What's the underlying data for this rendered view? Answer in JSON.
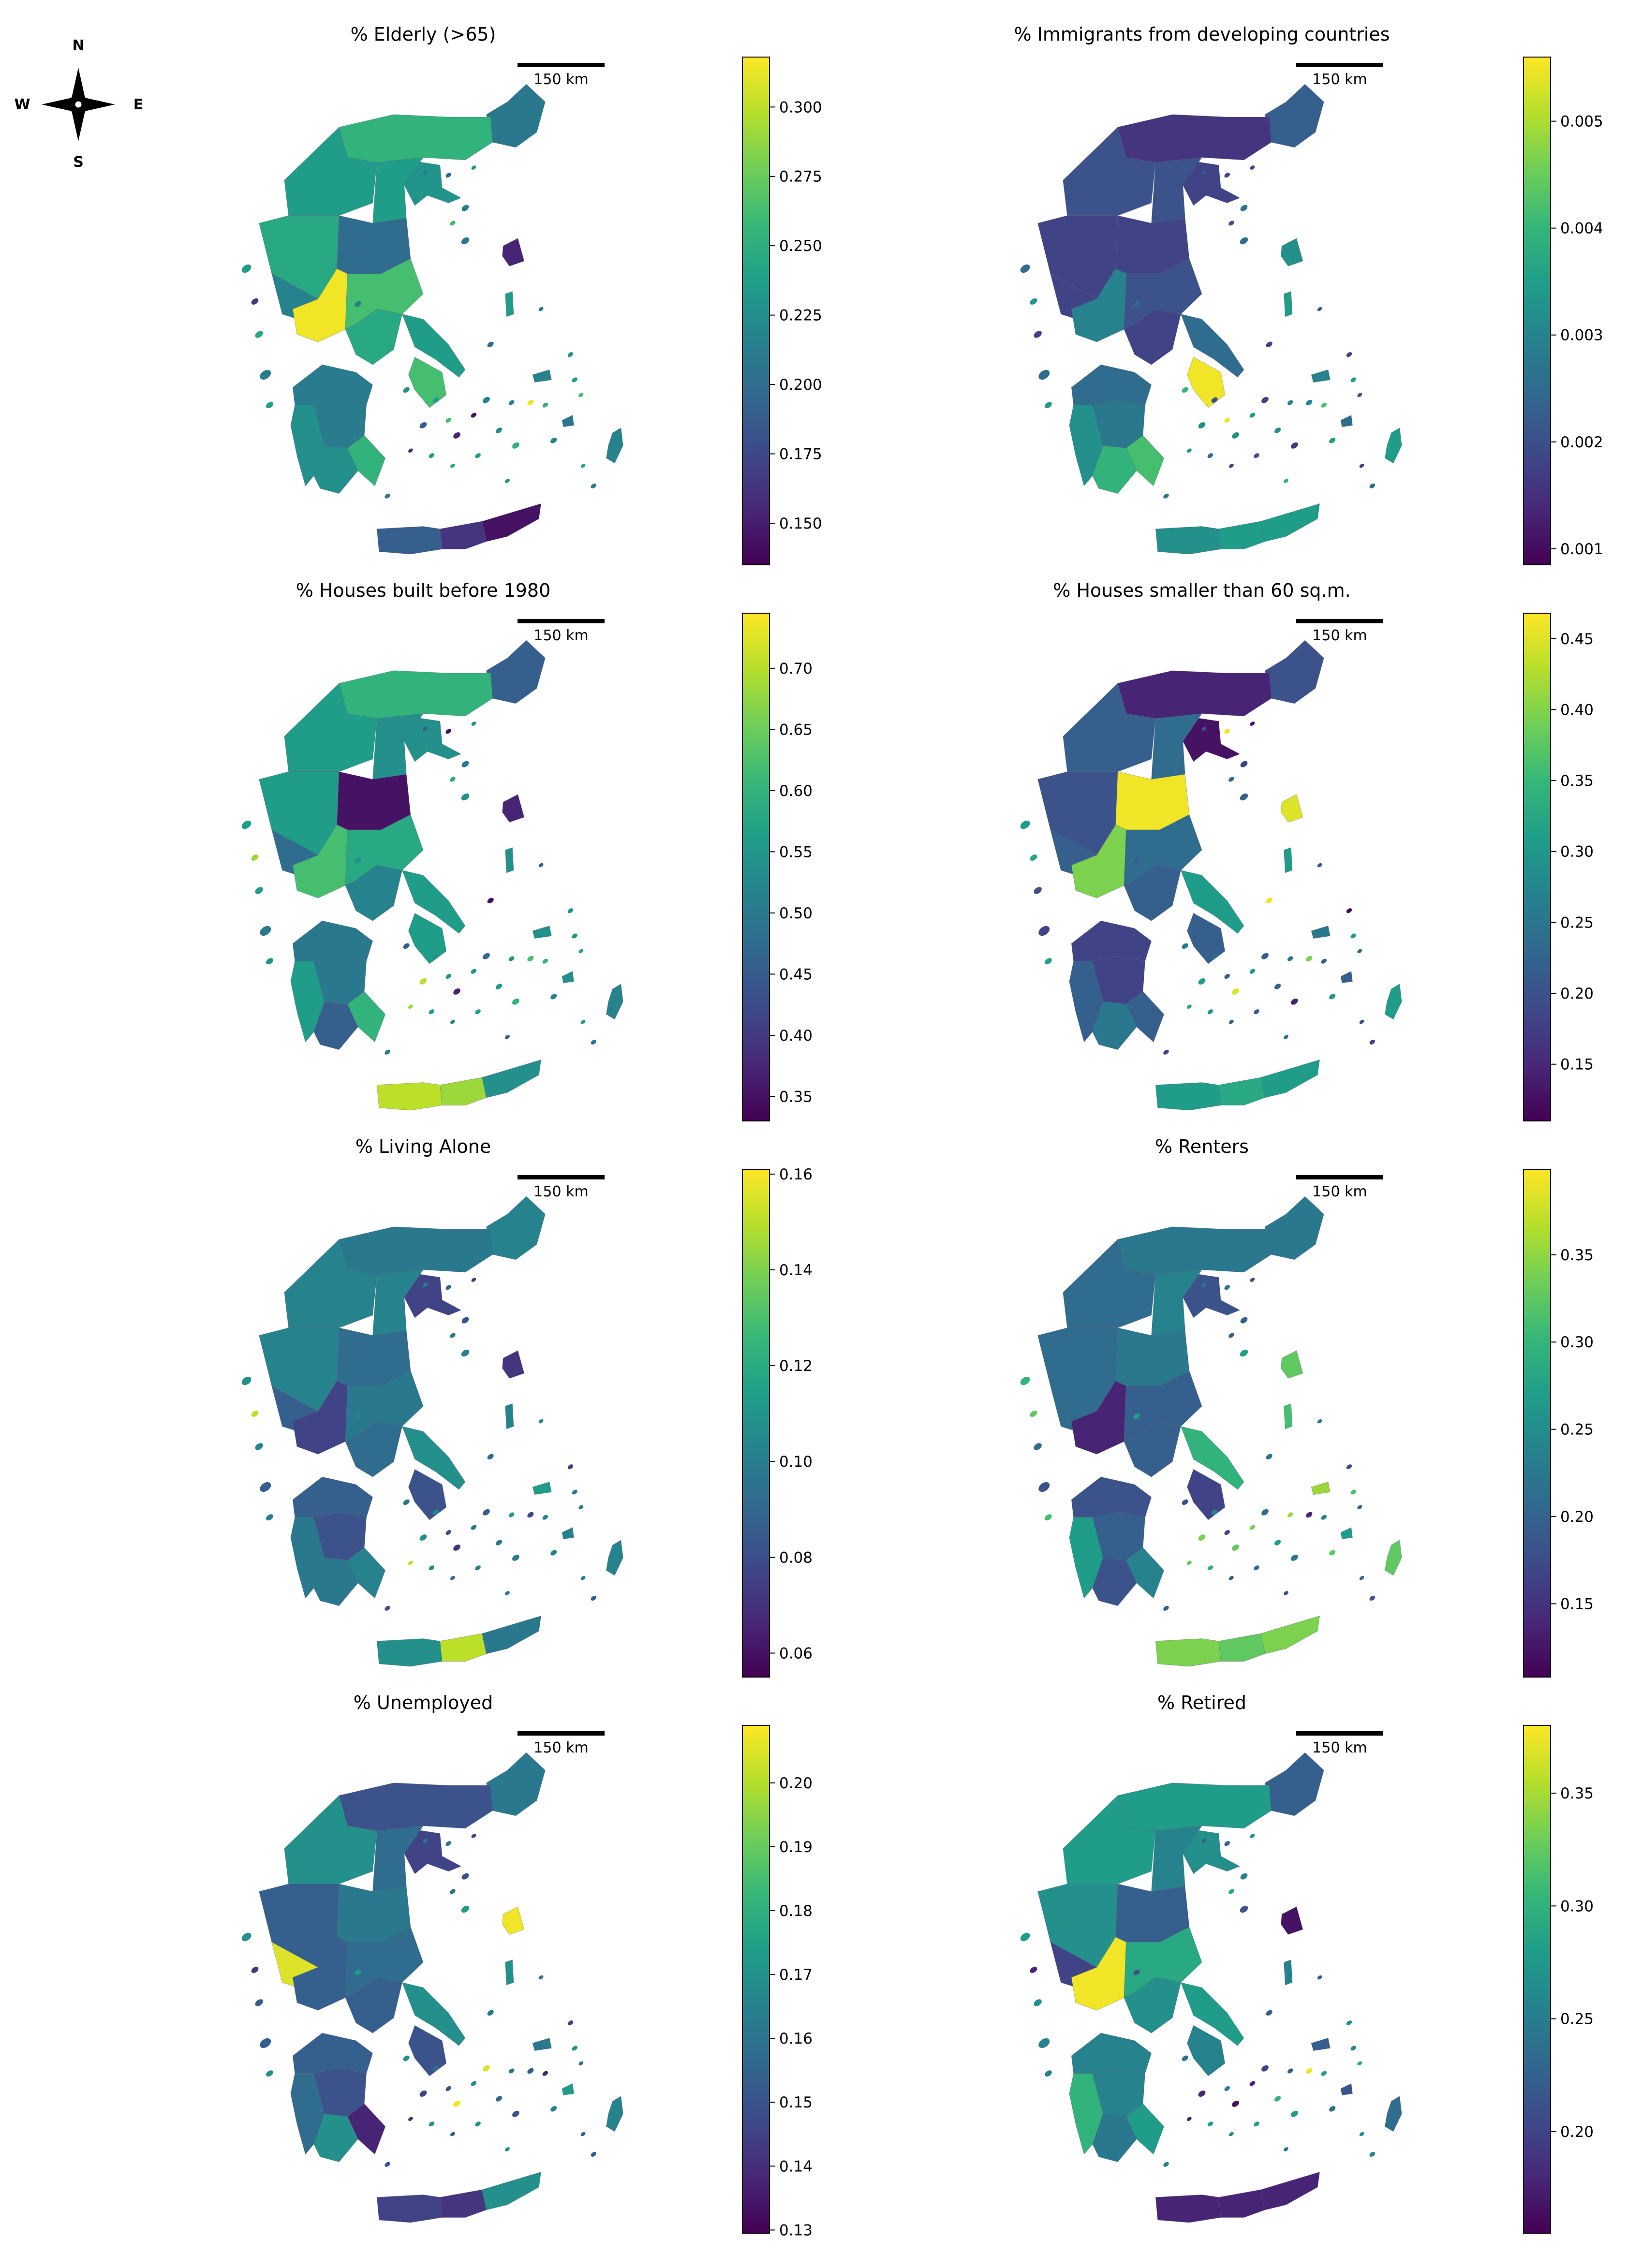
{
  "compass": {
    "n": "N",
    "s": "S",
    "e": "E",
    "w": "W"
  },
  "colors": {
    "viridis": [
      "#440154",
      "#482878",
      "#3e4a89",
      "#31688e",
      "#26828e",
      "#1f9e89",
      "#35b779",
      "#6ece58",
      "#b5de2b",
      "#fde725"
    ]
  },
  "panels": [
    {
      "id": "elderly",
      "title": "% Elderly (>65)",
      "scale_label": "150 km",
      "ticks": [
        "0.150",
        "0.175",
        "0.200",
        "0.225",
        "0.250",
        "0.275",
        "0.300"
      ],
      "color_range": [
        0.135,
        0.318
      ]
    },
    {
      "id": "immigrants",
      "title": "% Immigrants from developing countries",
      "scale_label": "150 km",
      "ticks": [
        "0.001",
        "0.002",
        "0.003",
        "0.004",
        "0.005"
      ],
      "color_range": [
        0.00085,
        0.0056
      ]
    },
    {
      "id": "houses1980",
      "title": "% Houses built before 1980",
      "scale_label": "150 km",
      "ticks": [
        "0.35",
        "0.40",
        "0.45",
        "0.50",
        "0.55",
        "0.60",
        "0.65",
        "0.70"
      ],
      "color_range": [
        0.33,
        0.745
      ]
    },
    {
      "id": "houses60",
      "title": "% Houses smaller than 60 sq.m.",
      "scale_label": "150 km",
      "ticks": [
        "0.15",
        "0.20",
        "0.25",
        "0.30",
        "0.35",
        "0.40",
        "0.45"
      ],
      "color_range": [
        0.11,
        0.468
      ]
    },
    {
      "id": "alone",
      "title": "% Living Alone",
      "scale_label": "150 km",
      "ticks": [
        "0.06",
        "0.08",
        "0.10",
        "0.12",
        "0.14",
        "0.16"
      ],
      "color_range": [
        0.055,
        0.161
      ]
    },
    {
      "id": "renters",
      "title": "% Renters",
      "scale_label": "150 km",
      "ticks": [
        "0.15",
        "0.20",
        "0.25",
        "0.30",
        "0.35"
      ],
      "color_range": [
        0.108,
        0.399
      ]
    },
    {
      "id": "unemployed",
      "title": "% Unemployed",
      "scale_label": "150 km",
      "ticks": [
        "0.13",
        "0.14",
        "0.15",
        "0.16",
        "0.17",
        "0.18",
        "0.19",
        "0.20"
      ],
      "color_range": [
        0.1295,
        0.209
      ]
    },
    {
      "id": "retired",
      "title": "% Retired",
      "scale_label": "150 km",
      "ticks": [
        "0.20",
        "0.25",
        "0.30",
        "0.35"
      ],
      "color_range": [
        0.155,
        0.38
      ]
    }
  ],
  "region_levels": {
    "elderly": [
      0.4,
      0.65,
      0.52,
      0.55,
      0.55,
      0.6,
      0.45,
      0.35,
      0.98,
      0.7,
      0.6,
      0.7,
      0.42,
      0.5,
      0.42,
      0.65,
      0.5,
      0.55,
      0.1,
      0.55,
      0.45,
      0.4,
      0.45,
      0.3,
      0.15,
      0.05
    ],
    "immigrants": [
      0.3,
      0.15,
      0.2,
      0.25,
      0.25,
      0.2,
      0.2,
      0.2,
      0.45,
      0.25,
      0.2,
      0.98,
      0.35,
      0.5,
      0.4,
      0.7,
      0.65,
      0.35,
      0.5,
      0.55,
      0.45,
      0.35,
      0.55,
      0.5,
      0.55,
      0.55
    ],
    "houses1980": [
      0.3,
      0.65,
      0.5,
      0.55,
      0.5,
      0.55,
      0.35,
      0.05,
      0.7,
      0.6,
      0.45,
      0.55,
      0.4,
      0.55,
      0.4,
      0.65,
      0.3,
      0.55,
      0.1,
      0.5,
      0.5,
      0.5,
      0.45,
      0.9,
      0.85,
      0.5
    ],
    "houses60": [
      0.25,
      0.1,
      0.05,
      0.3,
      0.35,
      0.25,
      0.3,
      0.98,
      0.8,
      0.35,
      0.3,
      0.3,
      0.2,
      0.3,
      0.2,
      0.3,
      0.4,
      0.55,
      0.95,
      0.55,
      0.4,
      0.3,
      0.55,
      0.55,
      0.6,
      0.55
    ],
    "alone": [
      0.45,
      0.4,
      0.2,
      0.45,
      0.45,
      0.45,
      0.3,
      0.35,
      0.2,
      0.4,
      0.35,
      0.25,
      0.3,
      0.4,
      0.25,
      0.45,
      0.4,
      0.5,
      0.15,
      0.45,
      0.55,
      0.45,
      0.45,
      0.5,
      0.9,
      0.4
    ],
    "renters": [
      0.4,
      0.4,
      0.25,
      0.35,
      0.45,
      0.35,
      0.35,
      0.4,
      0.1,
      0.3,
      0.3,
      0.2,
      0.25,
      0.55,
      0.3,
      0.45,
      0.25,
      0.65,
      0.75,
      0.7,
      0.85,
      0.55,
      0.75,
      0.8,
      0.75,
      0.8
    ],
    "unemployed": [
      0.4,
      0.25,
      0.2,
      0.5,
      0.35,
      0.3,
      0.95,
      0.4,
      0.3,
      0.35,
      0.3,
      0.25,
      0.3,
      0.35,
      0.25,
      0.1,
      0.5,
      0.5,
      0.98,
      0.5,
      0.4,
      0.55,
      0.45,
      0.2,
      0.15,
      0.5
    ],
    "retired": [
      0.3,
      0.55,
      0.5,
      0.55,
      0.45,
      0.5,
      0.2,
      0.3,
      0.98,
      0.6,
      0.5,
      0.45,
      0.45,
      0.65,
      0.45,
      0.55,
      0.4,
      0.55,
      0.05,
      0.45,
      0.3,
      0.25,
      0.35,
      0.1,
      0.1,
      0.1
    ]
  }
}
